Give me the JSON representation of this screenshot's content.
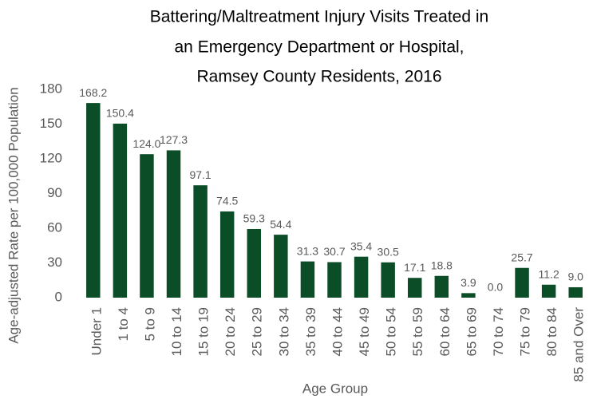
{
  "chart_data": {
    "type": "bar",
    "title": [
      "Battering/Maltreatment  Injury Visits Treated in",
      "an Emergency Department  or Hospital,",
      "Ramsey County Residents, 2016"
    ],
    "x_label": "Age Group",
    "y_label": "Age-adjusted Rate per 100,000  Population",
    "categories": [
      "Under 1",
      "1 to 4",
      "5 to 9",
      "10 to 14",
      "15 to 19",
      "20 to 24",
      "25 to 29",
      "30 to 34",
      "35 to 39",
      "40 to 44",
      "45 to 49",
      "50 to 54",
      "55 to 59",
      "60 to 64",
      "65 to 69",
      "70 to 74",
      "75 to 79",
      "80 to 84",
      "85 and Over"
    ],
    "values": [
      168.2,
      150.4,
      124.0,
      127.3,
      97.1,
      74.5,
      59.3,
      54.4,
      31.3,
      30.7,
      35.4,
      30.5,
      17.1,
      18.8,
      3.9,
      0.0,
      25.7,
      11.2,
      9.0
    ],
    "value_labels": [
      "168.2",
      "150.4",
      "124.0",
      "127.3",
      "97.1",
      "74.5",
      "59.3",
      "54.4",
      "31.3",
      "30.7",
      "35.4",
      "30.5",
      "17.1",
      "18.8",
      "3.9",
      "0.0",
      "25.7",
      "11.2",
      "9.0"
    ],
    "color": "#0b4d26",
    "ylim": [
      0,
      180
    ],
    "yticks": [
      0,
      30,
      60,
      90,
      120,
      150,
      180
    ],
    "grid": false
  }
}
